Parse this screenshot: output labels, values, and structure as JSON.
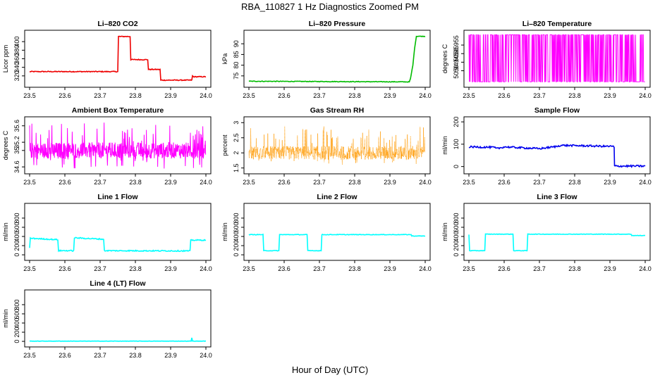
{
  "figure": {
    "title": "RBA_110827  1 Hz Diagnostics Zoomed PM",
    "xlabel": "Hour of Day (UTC)"
  },
  "chart_data": [
    {
      "type": "line",
      "title": "Li–820 CO2",
      "ylabel": "Licor ppm",
      "color": "#ee0000",
      "xlim": [
        23.5,
        24.0
      ],
      "ylim": [
        300,
        420
      ],
      "yticks": [
        320,
        340,
        360,
        380,
        400
      ],
      "xticks": [
        23.5,
        23.6,
        23.7,
        23.8,
        23.9,
        24.0
      ],
      "x": [
        23.5,
        23.75,
        23.752,
        23.785,
        23.787,
        23.835,
        23.837,
        23.87,
        23.872,
        23.96,
        23.962,
        23.965,
        24.0
      ],
      "y": [
        330,
        330,
        412,
        412,
        358,
        358,
        335,
        335,
        310,
        310,
        320,
        318,
        318
      ],
      "noise": 1
    },
    {
      "type": "line",
      "title": "Li–820 Pressure",
      "ylabel": "kPa",
      "color": "#00bb00",
      "xlim": [
        23.5,
        24.0
      ],
      "ylim": [
        71,
        95
      ],
      "yticks": [
        75,
        80,
        85,
        90
      ],
      "xticks": [
        23.5,
        23.6,
        23.7,
        23.8,
        23.9,
        24.0
      ],
      "x": [
        23.5,
        23.955,
        23.958,
        23.965,
        23.97,
        23.975,
        24.0
      ],
      "y": [
        72.5,
        72.2,
        73.5,
        80,
        88,
        93.5,
        93.5
      ],
      "noise": 0.15
    },
    {
      "type": "noise",
      "title": "Li–820 Temperature",
      "ylabel": "degrees C",
      "color": "#ff00ff",
      "xlim": [
        23.5,
        24.0
      ],
      "ylim": [
        50.932,
        50.962
      ],
      "yticks": [
        50.94,
        50.945,
        50.95,
        50.955
      ],
      "xticks": [
        23.5,
        23.6,
        23.7,
        23.8,
        23.9,
        24.0
      ],
      "levels": [
        50.9335,
        50.961
      ],
      "density_spans": [
        [
          23.5,
          24.0
        ]
      ]
    },
    {
      "type": "noise",
      "title": "Ambient Box Temperature",
      "ylabel": "degrees C",
      "color": "#ff00ff",
      "xlim": [
        23.5,
        24.0
      ],
      "ylim": [
        34.5,
        35.75
      ],
      "yticks": [
        34.6,
        35.0,
        35.2,
        35.6
      ],
      "xticks": [
        23.5,
        23.6,
        23.7,
        23.8,
        23.9,
        24.0
      ],
      "mean": 35.0,
      "spread": [
        34.55,
        35.68
      ]
    },
    {
      "type": "noise",
      "title": "Gas Stream RH",
      "ylabel": "percent",
      "color": "#ff9900",
      "xlim": [
        23.5,
        24.0
      ],
      "ylim": [
        1.4,
        3.1
      ],
      "yticks": [
        1.5,
        2.0,
        2.5,
        3.0
      ],
      "xticks": [
        23.5,
        23.6,
        23.7,
        23.8,
        23.9,
        24.0
      ],
      "mean": 2.0,
      "spread": [
        1.6,
        2.9
      ],
      "dots": true
    },
    {
      "type": "line",
      "title": "Sample Flow",
      "ylabel": "ml/min",
      "color": "#0000ee",
      "xlim": [
        23.5,
        24.0
      ],
      "ylim": [
        -20,
        210
      ],
      "yticks": [
        0,
        100,
        200
      ],
      "xticks": [
        23.5,
        23.6,
        23.7,
        23.8,
        23.9,
        24.0
      ],
      "x": [
        23.5,
        23.57,
        23.58,
        23.6,
        23.7,
        23.75,
        23.76,
        23.91,
        23.912,
        23.913,
        24.0
      ],
      "y": [
        88,
        86,
        80,
        88,
        80,
        90,
        95,
        90,
        85,
        2,
        2
      ],
      "noise": 4
    },
    {
      "type": "line",
      "title": "Line 1 Flow",
      "ylabel": "ml/min",
      "color": "#00ffff",
      "xlim": [
        23.5,
        24.0
      ],
      "ylim": [
        -60,
        1060
      ],
      "yticks": [
        0,
        200,
        400,
        600,
        800
      ],
      "xticks": [
        23.5,
        23.6,
        23.7,
        23.8,
        23.9,
        24.0
      ],
      "x": [
        23.5,
        23.502,
        23.58,
        23.582,
        23.625,
        23.627,
        23.71,
        23.712,
        23.955,
        23.957,
        24.0
      ],
      "y": [
        150,
        360,
        330,
        90,
        90,
        370,
        340,
        90,
        85,
        320,
        320
      ],
      "noise": 12
    },
    {
      "type": "line",
      "title": "Line 2 Flow",
      "ylabel": "ml/min",
      "color": "#00ffff",
      "xlim": [
        23.5,
        24.0
      ],
      "ylim": [
        -60,
        1060
      ],
      "yticks": [
        0,
        200,
        400,
        600,
        800
      ],
      "xticks": [
        23.5,
        23.6,
        23.7,
        23.8,
        23.9,
        24.0
      ],
      "x": [
        23.5,
        23.54,
        23.542,
        23.585,
        23.587,
        23.665,
        23.667,
        23.705,
        23.707,
        23.96,
        23.962,
        24.0
      ],
      "y": [
        440,
        440,
        90,
        90,
        440,
        440,
        90,
        90,
        440,
        440,
        410,
        410
      ],
      "noise": 6
    },
    {
      "type": "line",
      "title": "Line 3 Flow",
      "ylabel": "ml/min",
      "color": "#00ffff",
      "xlim": [
        23.5,
        24.0
      ],
      "ylim": [
        -60,
        1060
      ],
      "yticks": [
        0,
        200,
        400,
        600,
        800
      ],
      "xticks": [
        23.5,
        23.6,
        23.7,
        23.8,
        23.9,
        24.0
      ],
      "x": [
        23.5,
        23.502,
        23.545,
        23.547,
        23.625,
        23.627,
        23.665,
        23.667,
        23.96,
        23.962,
        24.0
      ],
      "y": [
        440,
        90,
        90,
        450,
        450,
        90,
        90,
        450,
        450,
        420,
        420
      ],
      "noise": 5
    },
    {
      "type": "line",
      "title": "Line 4 (LT) Flow",
      "ylabel": "ml/min",
      "color": "#00ffff",
      "xlim": [
        23.5,
        24.0
      ],
      "ylim": [
        -60,
        1060
      ],
      "yticks": [
        0,
        200,
        400,
        600,
        800
      ],
      "xticks": [
        23.5,
        23.6,
        23.7,
        23.8,
        23.9,
        24.0
      ],
      "x": [
        23.5,
        23.958,
        23.96,
        23.962,
        24.0
      ],
      "y": [
        5,
        5,
        80,
        5,
        5
      ],
      "noise": 3
    }
  ]
}
